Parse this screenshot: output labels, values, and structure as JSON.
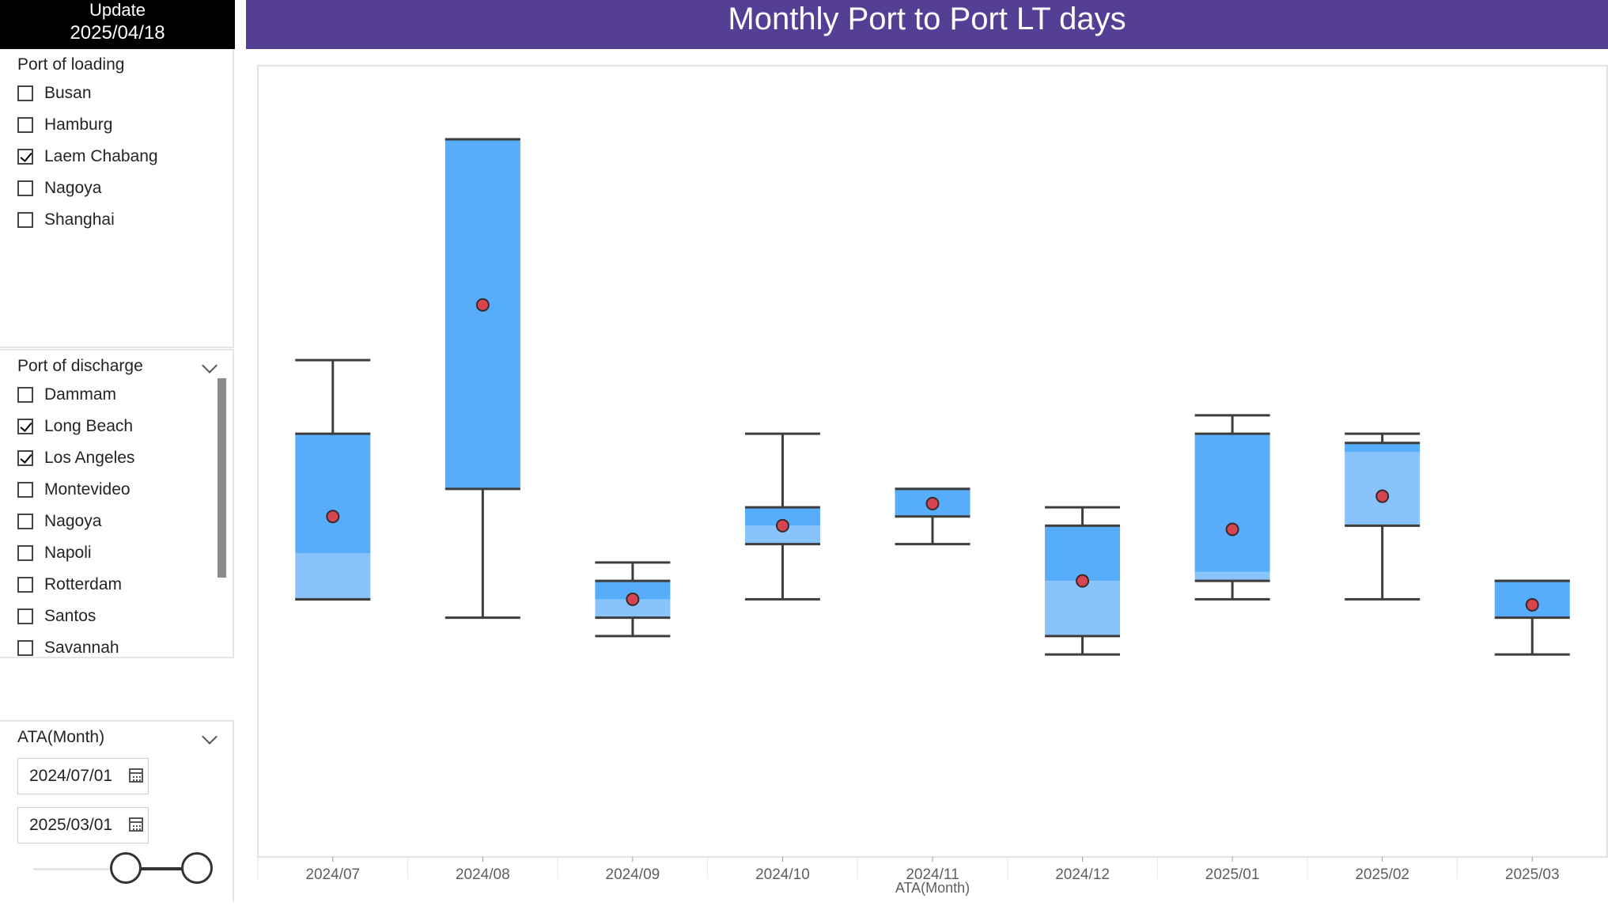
{
  "update": {
    "label": "Update",
    "date": "2025/04/18"
  },
  "port_of_loading": {
    "title": "Port of loading",
    "items": [
      {
        "label": "Busan",
        "checked": false
      },
      {
        "label": "Hamburg",
        "checked": false
      },
      {
        "label": "Laem Chabang",
        "checked": true
      },
      {
        "label": "Nagoya",
        "checked": false
      },
      {
        "label": "Shanghai",
        "checked": false
      }
    ]
  },
  "port_of_discharge": {
    "title": "Port of discharge",
    "items": [
      {
        "label": "Dammam",
        "checked": false
      },
      {
        "label": "Long Beach",
        "checked": true
      },
      {
        "label": "Los Angeles",
        "checked": true
      },
      {
        "label": "Montevideo",
        "checked": false
      },
      {
        "label": "Nagoya",
        "checked": false
      },
      {
        "label": "Napoli",
        "checked": false
      },
      {
        "label": "Rotterdam",
        "checked": false
      },
      {
        "label": "Santos",
        "checked": false
      },
      {
        "label": "Savannah",
        "checked": false
      }
    ]
  },
  "ata_month": {
    "title": "ATA(Month)",
    "from": "2024/07/01",
    "to": "2025/03/01"
  },
  "icons": {
    "calendar": "calendar-icon",
    "chevron": "chevron-down-icon",
    "check": "checkbox-checked"
  },
  "colors": {
    "title_bar": "#543f94",
    "box_dark": "#57adf9",
    "box_light": "#88c3fb",
    "mean_marker": "#d64550",
    "whisker": "#3d3d3d"
  },
  "chart_data": {
    "type": "boxplot",
    "title": "Monthly Port to Port LT days",
    "xlabel": "ATA(Month)",
    "ylabel": "",
    "y_axis_visible": false,
    "categories": [
      "2024/07",
      "2024/08",
      "2024/09",
      "2024/10",
      "2024/11",
      "2024/12",
      "2025/01",
      "2025/02",
      "2025/03"
    ],
    "boxes": [
      {
        "x": "2024/07",
        "min": 13,
        "q1": 13,
        "median": 15.5,
        "q3": 22,
        "max": 26,
        "mean": 17.5
      },
      {
        "x": "2024/08",
        "min": 12,
        "q1": 19,
        "median": 19,
        "q3": 38,
        "max": 38,
        "mean": 29
      },
      {
        "x": "2024/09",
        "min": 11,
        "q1": 12,
        "median": 13,
        "q3": 14,
        "max": 15,
        "mean": 13
      },
      {
        "x": "2024/10",
        "min": 13,
        "q1": 16,
        "median": 17,
        "q3": 18,
        "max": 22,
        "mean": 17
      },
      {
        "x": "2024/11",
        "min": 16,
        "q1": 17.5,
        "median": 17.5,
        "q3": 19,
        "max": 19,
        "mean": 18.2
      },
      {
        "x": "2024/12",
        "min": 10,
        "q1": 11,
        "median": 14,
        "q3": 17,
        "max": 18,
        "mean": 14
      },
      {
        "x": "2025/01",
        "min": 13,
        "q1": 14,
        "median": 14.5,
        "q3": 22,
        "max": 23,
        "mean": 16.8
      },
      {
        "x": "2025/02",
        "min": 13,
        "q1": 17,
        "median": 21,
        "q3": 21.5,
        "max": 22,
        "mean": 18.6
      },
      {
        "x": "2025/03",
        "min": 10,
        "q1": 12,
        "median": 12,
        "q3": 14,
        "max": 14,
        "mean": 12.7
      }
    ],
    "ylim": [
      -1,
      42
    ],
    "grid": false,
    "legend": "none"
  }
}
